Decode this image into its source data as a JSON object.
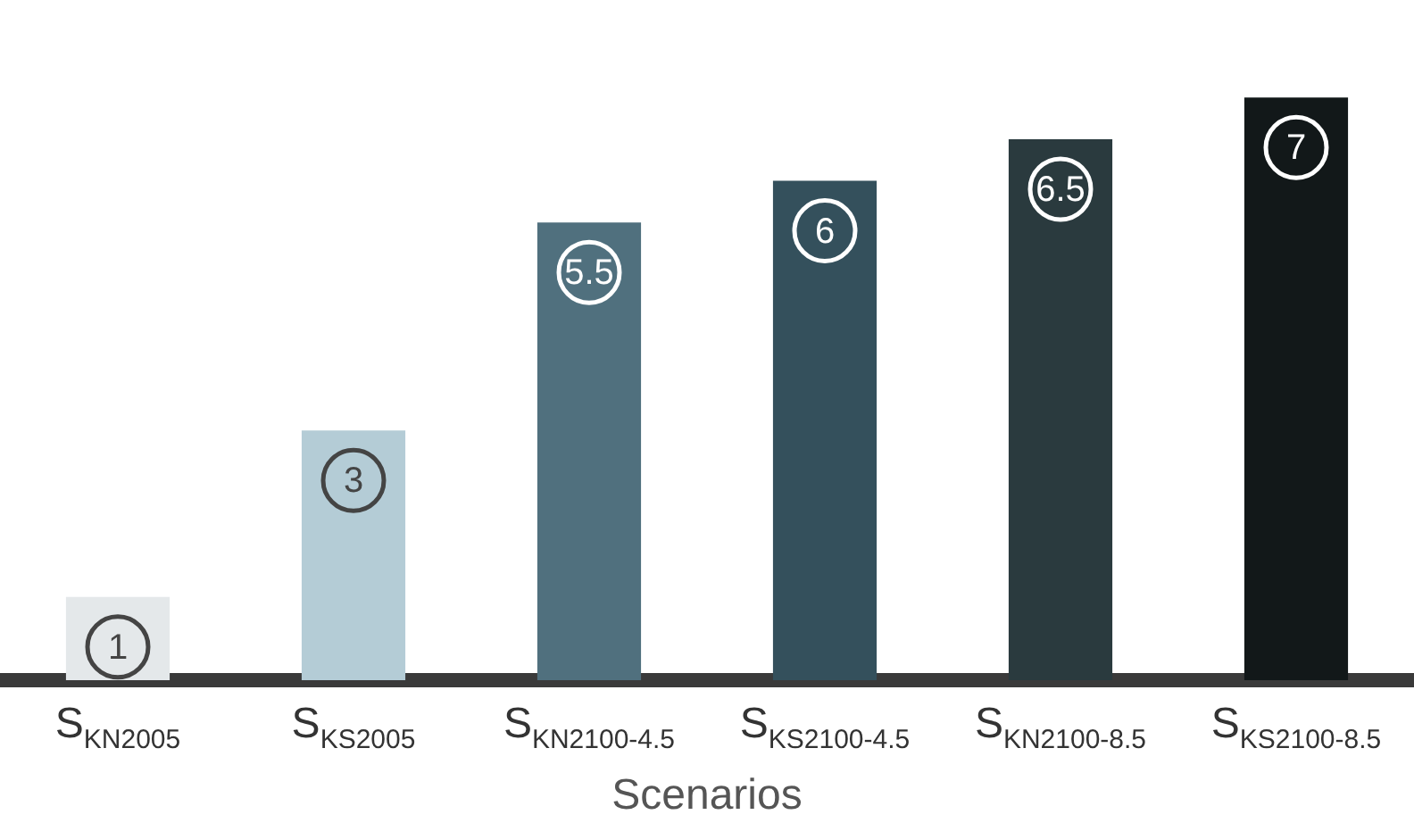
{
  "chart_data": {
    "type": "bar",
    "xlabel": "Scenarios",
    "categories": [
      "S$_{KN2005}$",
      "S$_{KS2005}$",
      "S$_{KN2100-4.5}$",
      "S$_{KS2100-4.5}$",
      "S$_{KN2100-8.5}$",
      "S$_{KS2100-8.5}$"
    ],
    "values": [
      1,
      3,
      5.5,
      6,
      6.5,
      7
    ],
    "colors": [
      "#e4e8ea",
      "#b4ccd6",
      "#50707e",
      "#34505c",
      "#2a3a3e",
      "#121819"
    ],
    "data_labels": true,
    "grid": false,
    "legend": false
  }
}
